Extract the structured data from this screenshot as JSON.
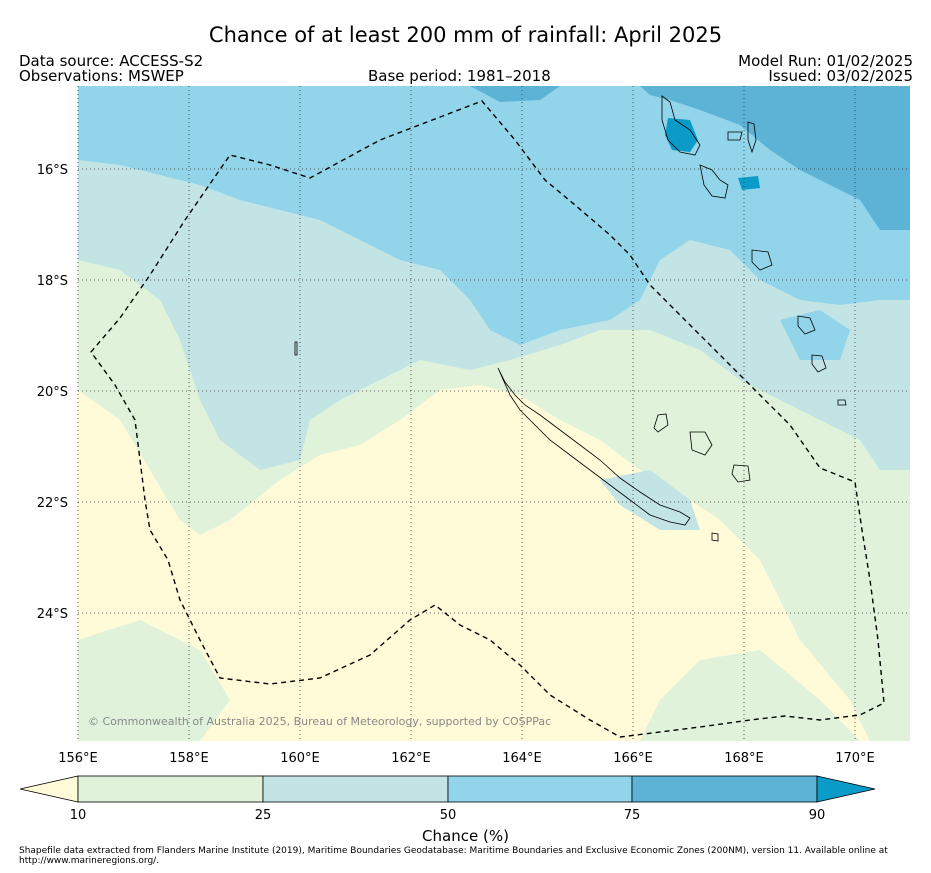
{
  "header": {
    "title": "Chance of at least 200 mm of rainfall: April 2025",
    "data_source": "Data source: ACCESS-S2",
    "observations": "Observations: MSWEP",
    "base_period": "Base period: 1981–2018",
    "model_run": "Model Run: 01/02/2025",
    "issued": "Issued: 03/02/2025"
  },
  "map": {
    "lat_labels": [
      "16°S",
      "18°S",
      "20°S",
      "22°S",
      "24°S"
    ],
    "lon_labels": [
      "156°E",
      "158°E",
      "160°E",
      "162°E",
      "164°E",
      "166°E",
      "168°E",
      "170°E"
    ],
    "copyright": "© Commonwealth of Australia 2025, Bureau of Meteorology, supported by COSPPac",
    "eez_outline": "dashed"
  },
  "colorbar": {
    "label": "Chance (%)",
    "ticks": [
      "10",
      "25",
      "50",
      "75",
      "90"
    ],
    "colors": {
      "below_10": "#fffad8",
      "10_25": "#e0f3da",
      "25_50": "#c2e4e4",
      "50_75": "#92d5ea",
      "75_90": "#5cb3d5",
      "above_90": "#0a9bc8"
    }
  },
  "footnote": "Shapefile data extracted from Flanders Marine Institute (2019), Maritime Boundaries Geodatabase: Maritime Boundaries and Exclusive Economic Zones (200NM), version 11. Available online at http://www.marineregions.org/."
}
